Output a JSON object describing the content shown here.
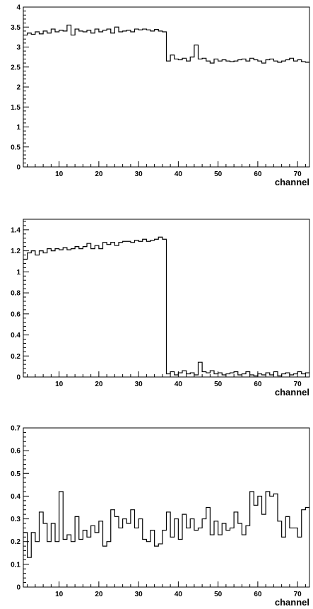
{
  "chart_data": [
    {
      "type": "line",
      "xlabel": "channel",
      "ylabel": "",
      "xlim": [
        1,
        73
      ],
      "ylim": [
        0,
        4
      ],
      "x_ticks": [
        "10",
        "20",
        "30",
        "40",
        "50",
        "60",
        "70"
      ],
      "y_ticks": [
        "0",
        "0.5",
        "1",
        "1.5",
        "2",
        "2.5",
        "3",
        "3.5",
        "4"
      ],
      "grid": false,
      "series": [
        {
          "x": [
            1,
            2,
            3,
            4,
            5,
            6,
            7,
            8,
            9,
            10,
            11,
            12,
            13,
            14,
            15,
            16,
            17,
            18,
            19,
            20,
            21,
            22,
            23,
            24,
            25,
            26,
            27,
            28,
            29,
            30,
            31,
            32,
            33,
            34,
            35,
            36,
            37,
            38,
            39,
            40,
            41,
            42,
            43,
            44,
            45,
            46,
            47,
            48,
            49,
            50,
            51,
            52,
            53,
            54,
            55,
            56,
            57,
            58,
            59,
            60,
            61,
            62,
            63,
            64,
            65,
            66,
            67,
            68,
            69,
            70,
            71,
            72
          ],
          "values": [
            3.3,
            3.35,
            3.32,
            3.38,
            3.33,
            3.4,
            3.35,
            3.45,
            3.38,
            3.42,
            3.4,
            3.55,
            3.3,
            3.45,
            3.4,
            3.38,
            3.42,
            3.35,
            3.45,
            3.38,
            3.42,
            3.45,
            3.35,
            3.5,
            3.38,
            3.4,
            3.42,
            3.38,
            3.45,
            3.43,
            3.45,
            3.43,
            3.4,
            3.44,
            3.4,
            3.38,
            2.65,
            2.8,
            2.7,
            2.68,
            2.72,
            2.65,
            2.75,
            3.05,
            2.7,
            2.72,
            2.65,
            2.6,
            2.7,
            2.65,
            2.68,
            2.65,
            2.63,
            2.65,
            2.68,
            2.7,
            2.65,
            2.72,
            2.68,
            2.65,
            2.6,
            2.68,
            2.7,
            2.65,
            2.62,
            2.65,
            2.68,
            2.72,
            2.65,
            2.68,
            2.63,
            2.62
          ]
        }
      ]
    },
    {
      "type": "line",
      "xlabel": "channel",
      "ylabel": "",
      "xlim": [
        1,
        73
      ],
      "ylim": [
        0,
        1.5
      ],
      "x_ticks": [
        "10",
        "20",
        "30",
        "40",
        "50",
        "60",
        "70"
      ],
      "y_ticks": [
        "0",
        "0.2",
        "0.4",
        "0.6",
        "0.8",
        "1",
        "1.2",
        "1.4"
      ],
      "grid": false,
      "series": [
        {
          "x": [
            1,
            2,
            3,
            4,
            5,
            6,
            7,
            8,
            9,
            10,
            11,
            12,
            13,
            14,
            15,
            16,
            17,
            18,
            19,
            20,
            21,
            22,
            23,
            24,
            25,
            26,
            27,
            28,
            29,
            30,
            31,
            32,
            33,
            34,
            35,
            36,
            37,
            38,
            39,
            40,
            41,
            42,
            43,
            44,
            45,
            46,
            47,
            48,
            49,
            50,
            51,
            52,
            53,
            54,
            55,
            56,
            57,
            58,
            59,
            60,
            61,
            62,
            63,
            64,
            65,
            66,
            67,
            68,
            69,
            70,
            71,
            72
          ],
          "values": [
            1.12,
            1.18,
            1.2,
            1.16,
            1.2,
            1.18,
            1.22,
            1.2,
            1.22,
            1.21,
            1.23,
            1.21,
            1.22,
            1.24,
            1.22,
            1.24,
            1.27,
            1.22,
            1.25,
            1.22,
            1.28,
            1.26,
            1.28,
            1.25,
            1.28,
            1.29,
            1.29,
            1.28,
            1.3,
            1.29,
            1.31,
            1.29,
            1.3,
            1.31,
            1.33,
            1.31,
            0.03,
            0.05,
            0.02,
            0.04,
            0.06,
            0.03,
            0.04,
            0.02,
            0.14,
            0.05,
            0.04,
            0.06,
            0.03,
            0.04,
            0.02,
            0.03,
            0.04,
            0.05,
            0.02,
            0.03,
            0.05,
            0.02,
            0.01,
            0.03,
            0.02,
            0.04,
            0.02,
            0.05,
            0.01,
            0.03,
            0.04,
            0.02,
            0.03,
            0.05,
            0.03,
            0.04
          ]
        }
      ]
    },
    {
      "type": "line",
      "xlabel": "channel",
      "ylabel": "",
      "xlim": [
        1,
        73
      ],
      "ylim": [
        0,
        0.7
      ],
      "x_ticks": [
        "10",
        "20",
        "30",
        "40",
        "50",
        "60",
        "70"
      ],
      "y_ticks": [
        "0",
        "0.1",
        "0.2",
        "0.3",
        "0.4",
        "0.5",
        "0.6",
        "0.7"
      ],
      "grid": false,
      "series": [
        {
          "x": [
            1,
            2,
            3,
            4,
            5,
            6,
            7,
            8,
            9,
            10,
            11,
            12,
            13,
            14,
            15,
            16,
            17,
            18,
            19,
            20,
            21,
            22,
            23,
            24,
            25,
            26,
            27,
            28,
            29,
            30,
            31,
            32,
            33,
            34,
            35,
            36,
            37,
            38,
            39,
            40,
            41,
            42,
            43,
            44,
            45,
            46,
            47,
            48,
            49,
            50,
            51,
            52,
            53,
            54,
            55,
            56,
            57,
            58,
            59,
            60,
            61,
            62,
            63,
            64,
            65,
            66,
            67,
            68,
            69,
            70,
            71,
            72
          ],
          "values": [
            0.24,
            0.13,
            0.24,
            0.2,
            0.33,
            0.28,
            0.2,
            0.28,
            0.2,
            0.42,
            0.21,
            0.23,
            0.2,
            0.31,
            0.21,
            0.25,
            0.22,
            0.27,
            0.24,
            0.29,
            0.18,
            0.2,
            0.34,
            0.31,
            0.26,
            0.3,
            0.28,
            0.34,
            0.26,
            0.3,
            0.21,
            0.2,
            0.25,
            0.18,
            0.19,
            0.25,
            0.33,
            0.22,
            0.3,
            0.21,
            0.32,
            0.26,
            0.3,
            0.25,
            0.26,
            0.3,
            0.35,
            0.23,
            0.29,
            0.23,
            0.28,
            0.25,
            0.26,
            0.33,
            0.28,
            0.23,
            0.27,
            0.42,
            0.36,
            0.4,
            0.32,
            0.42,
            0.4,
            0.41,
            0.29,
            0.22,
            0.31,
            0.26,
            0.26,
            0.22,
            0.34,
            0.35
          ]
        }
      ]
    }
  ]
}
